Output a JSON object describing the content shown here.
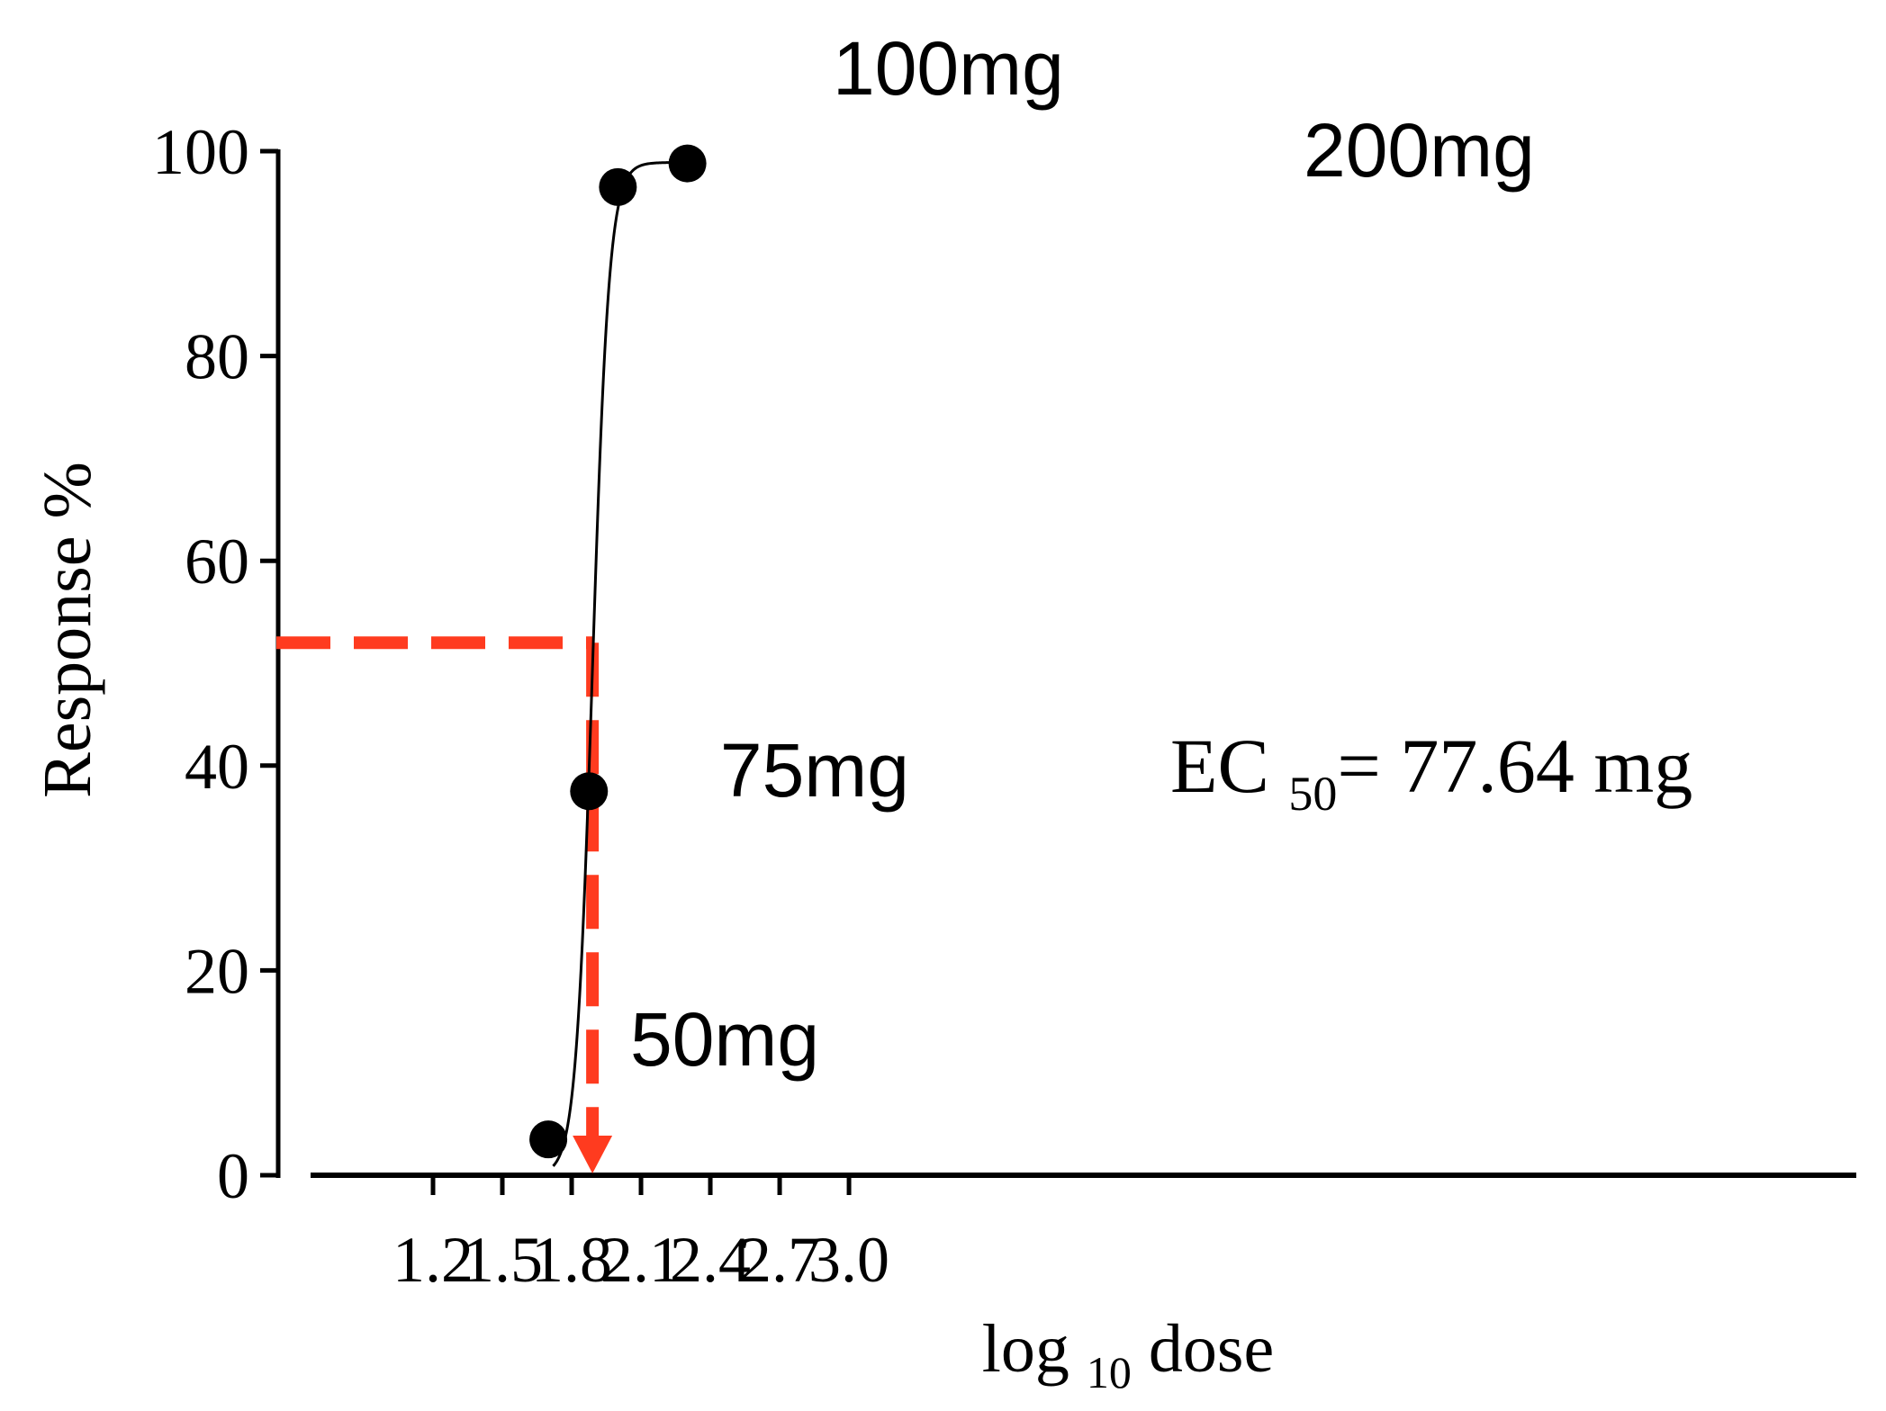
{
  "chart_data": {
    "type": "scatter",
    "xlabel": {
      "text": "log",
      "sub": "10",
      "tail": "dose"
    },
    "ylabel": "Response %",
    "xlim": [
      1.05,
      3.05
    ],
    "ylim": [
      0,
      100
    ],
    "x_ticks": [
      1.2,
      1.5,
      1.8,
      2.1,
      2.4,
      2.7,
      3.0
    ],
    "x_tick_labels": [
      "1.2",
      "1.5",
      "1.8",
      "2.1",
      "2.4",
      "2.7",
      "3.0"
    ],
    "y_ticks": [
      0,
      20,
      40,
      60,
      80,
      100
    ],
    "y_tick_labels": [
      "0",
      "20",
      "40",
      "60",
      "80",
      "100"
    ],
    "points": [
      {
        "x": 1.699,
        "y": 3.5,
        "label": "50mg"
      },
      {
        "x": 1.875,
        "y": 37.5,
        "label": "75mg"
      },
      {
        "x": 2.0,
        "y": 96.5,
        "label": "100mg"
      },
      {
        "x": 2.301,
        "y": 98.8,
        "label": "200mg"
      }
    ],
    "fit_curve": {
      "type": "sigmoid",
      "bottom": 0,
      "top": 98.9,
      "log_ec50": 1.89,
      "hill_slope": 12
    },
    "ec50_marker": {
      "x": 1.89,
      "y": 52,
      "color": "#ff3b1f"
    },
    "annotation": {
      "prefix": "EC",
      "sub": "50",
      "suffix": "= 77.64 mg"
    },
    "colors": {
      "points": "#000000",
      "curve": "#000000",
      "axes": "#000000",
      "marker": "#ff3b1f"
    },
    "grid": false
  }
}
